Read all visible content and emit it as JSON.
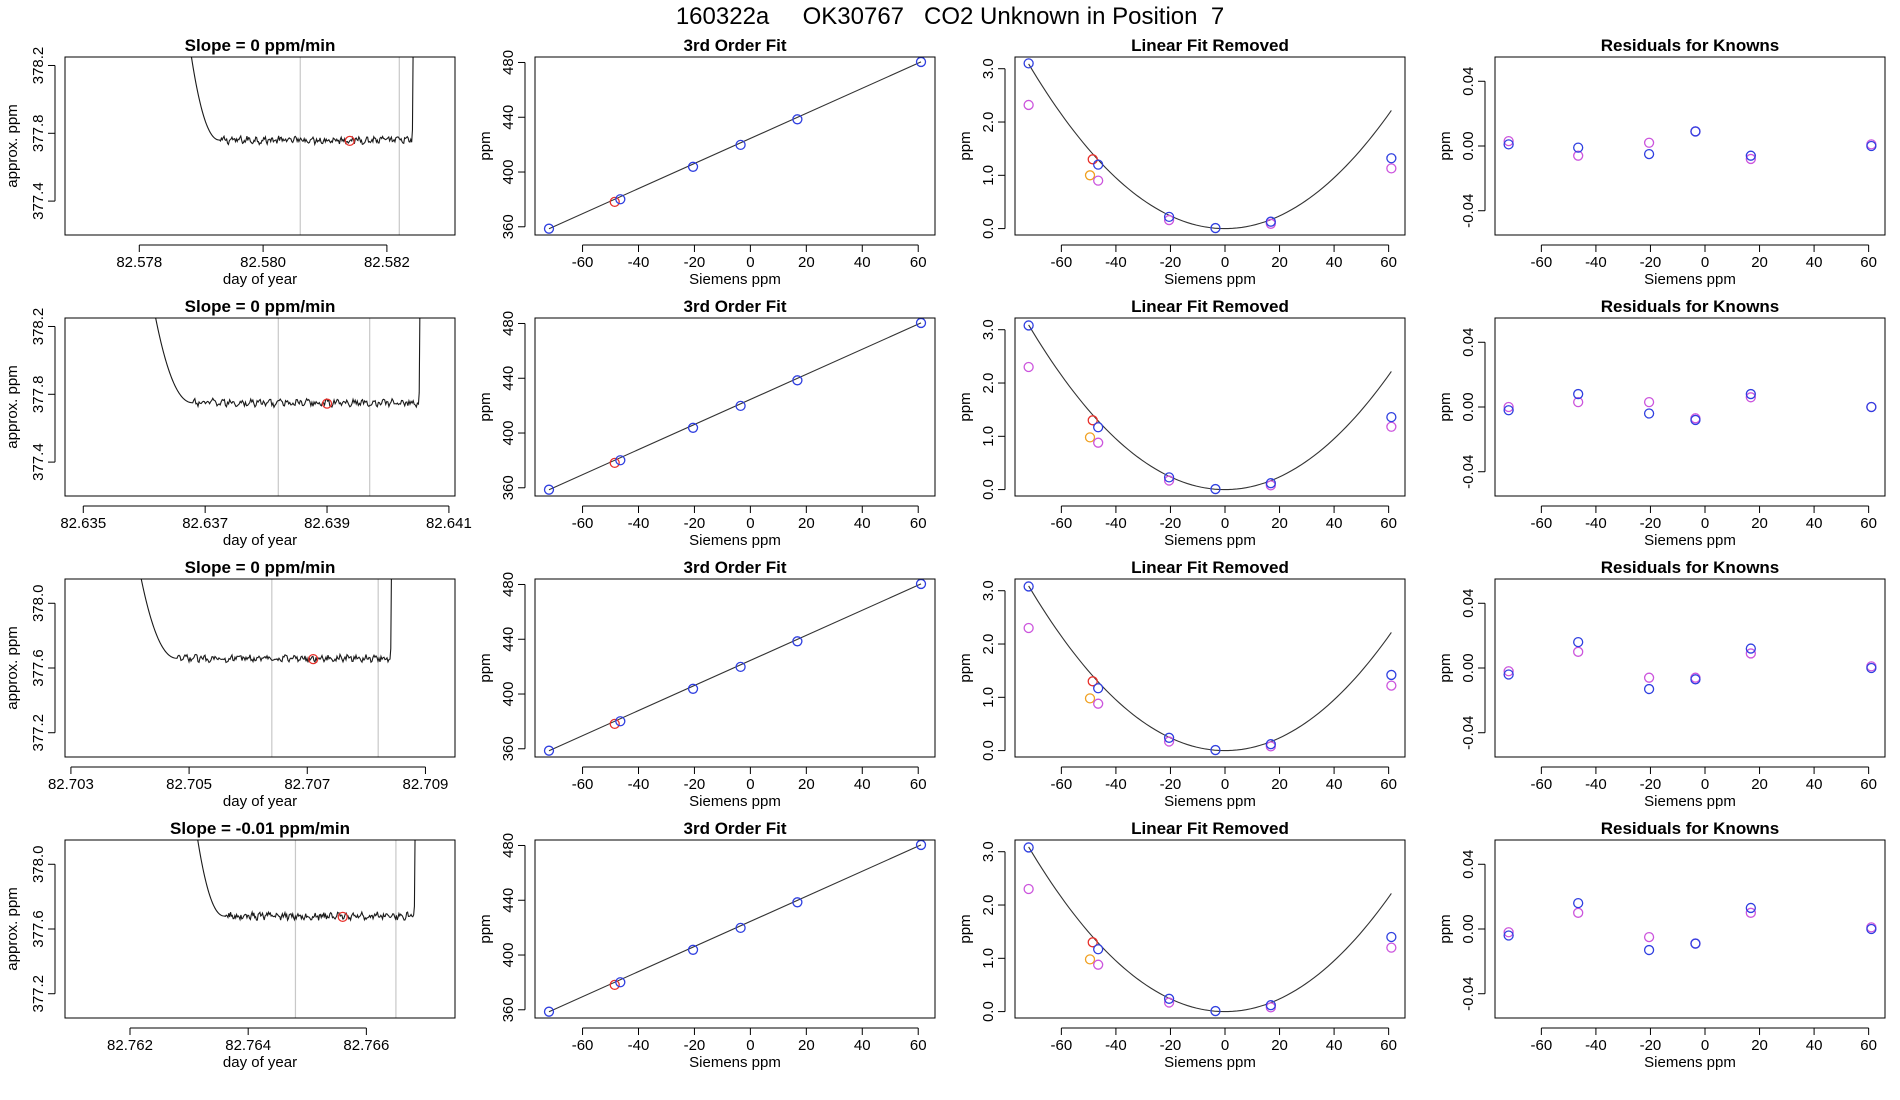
{
  "page": {
    "title": "160322a     OK30767   CO2 Unknown in Position  7"
  },
  "colors": {
    "axis": "#000000",
    "trace": "#1a1a1a",
    "fit_line": "#333333",
    "vline": "#c8c8c8",
    "red": "#e8302a",
    "blue": "#2f3fe0",
    "magenta": "#cc55dd",
    "orange": "#f0a020",
    "purple": "#7a3fe8"
  },
  "chart_data": [
    {
      "row": 1,
      "type": "line",
      "title": "Slope =  0  ppm/min",
      "xlabel": "day of year",
      "ylabel": "approx. ppm",
      "xlim": [
        82.5768,
        82.5831
      ],
      "ylim": [
        377.2,
        378.25
      ],
      "xticks": [
        82.578,
        82.58,
        82.582
      ],
      "xtick_labels": [
        "82.578",
        "82.580",
        "82.582"
      ],
      "yticks": [
        377.4,
        377.8,
        378.2
      ],
      "ytick_labels": [
        "377.4",
        "377.8",
        "378.2"
      ],
      "start": 82.5787,
      "end": 82.5824,
      "rise_end": 82.5793,
      "plateau": 377.76,
      "vlines": [
        82.5806,
        82.5822
      ],
      "marker": {
        "x": 82.5814,
        "y": 377.755
      }
    },
    {
      "row": 2,
      "type": "line",
      "title": "Slope =  0  ppm/min",
      "xlabel": "day of year",
      "ylabel": "approx. ppm",
      "xlim": [
        82.6347,
        82.6411
      ],
      "ylim": [
        377.2,
        378.25
      ],
      "xticks": [
        82.635,
        82.637,
        82.639,
        82.641
      ],
      "xtick_labels": [
        "82.635",
        "82.637",
        "82.639",
        "82.641"
      ],
      "yticks": [
        377.4,
        377.8,
        378.2
      ],
      "ytick_labels": [
        "377.4",
        "377.8",
        "378.2"
      ],
      "start": 82.636,
      "end": 82.6405,
      "rise_end": 82.6368,
      "plateau": 377.75,
      "vlines": [
        82.6382,
        82.6397
      ],
      "marker": {
        "x": 82.639,
        "y": 377.745
      }
    },
    {
      "row": 3,
      "type": "line",
      "title": "Slope =  0  ppm/min",
      "xlabel": "day of year",
      "ylabel": "approx. ppm",
      "xlim": [
        82.7029,
        82.7095
      ],
      "ylim": [
        377.05,
        378.15
      ],
      "xticks": [
        82.703,
        82.705,
        82.707,
        82.709
      ],
      "xtick_labels": [
        "82.703",
        "82.705",
        "82.707",
        "82.709"
      ],
      "yticks": [
        377.2,
        377.6,
        378.0
      ],
      "ytick_labels": [
        "377.2",
        "377.6",
        "378.0"
      ],
      "start": 82.704,
      "end": 82.7084,
      "rise_end": 82.7048,
      "plateau": 377.66,
      "vlines": [
        82.7064,
        82.7082
      ],
      "marker": {
        "x": 82.7071,
        "y": 377.655
      }
    },
    {
      "row": 4,
      "type": "line",
      "title": "Slope =  -0.01  ppm/min",
      "xlabel": "day of year",
      "ylabel": "approx. ppm",
      "xlim": [
        82.7609,
        82.7675
      ],
      "ylim": [
        377.05,
        378.15
      ],
      "xticks": [
        82.762,
        82.764,
        82.766
      ],
      "xtick_labels": [
        "82.762",
        "82.764",
        "82.766"
      ],
      "yticks": [
        377.2,
        377.6,
        378.0
      ],
      "ytick_labels": [
        "377.2",
        "377.6",
        "378.0"
      ],
      "start": 82.763,
      "end": 82.7668,
      "rise_end": 82.7636,
      "plateau": 377.68,
      "vlines": [
        82.7648,
        82.7665
      ],
      "marker": {
        "x": 82.7656,
        "y": 377.675
      }
    },
    {
      "row": 1,
      "type": "scatter",
      "title": "3rd Order Fit",
      "xlabel": "Siemens ppm",
      "ylabel": "ppm",
      "xlim": [
        -77,
        66
      ],
      "ylim": [
        354,
        484
      ],
      "xticks": [
        -60,
        -40,
        -20,
        0,
        20,
        40,
        60
      ],
      "xtick_labels": [
        "-60",
        "-40",
        "-20",
        "0",
        "20",
        "40",
        "60"
      ],
      "yticks": [
        360,
        400,
        440,
        480
      ],
      "ytick_labels": [
        "360",
        "400",
        "440",
        "480"
      ],
      "line": {
        "x": [
          -72,
          61
        ],
        "y": [
          358.6,
          480.4
        ]
      },
      "points_blue": {
        "x": [
          -72,
          -46.5,
          -20.5,
          -3.5,
          16.8,
          61
        ],
        "y": [
          358.6,
          380.1,
          403.8,
          419.8,
          438.5,
          480.4
        ]
      },
      "points_red": {
        "x": [
          -48.5
        ],
        "y": [
          378.2
        ]
      }
    },
    {
      "row": 2,
      "type": "scatter",
      "title": "3rd Order Fit",
      "xlabel": "Siemens ppm",
      "ylabel": "ppm",
      "xlim": [
        -77,
        66
      ],
      "ylim": [
        354,
        484
      ],
      "xticks": [
        -60,
        -40,
        -20,
        0,
        20,
        40,
        60
      ],
      "xtick_labels": [
        "-60",
        "-40",
        "-20",
        "0",
        "20",
        "40",
        "60"
      ],
      "yticks": [
        360,
        400,
        440,
        480
      ],
      "ytick_labels": [
        "360",
        "400",
        "440",
        "480"
      ],
      "line": {
        "x": [
          -72,
          61
        ],
        "y": [
          358.6,
          480.4
        ]
      },
      "points_blue": {
        "x": [
          -72,
          -46.5,
          -20.5,
          -3.5,
          16.8,
          61
        ],
        "y": [
          358.6,
          380.1,
          403.8,
          419.8,
          438.5,
          480.4
        ]
      },
      "points_red": {
        "x": [
          -48.5
        ],
        "y": [
          378.2
        ]
      }
    },
    {
      "row": 3,
      "type": "scatter",
      "title": "3rd Order Fit",
      "xlabel": "Siemens ppm",
      "ylabel": "ppm",
      "xlim": [
        -77,
        66
      ],
      "ylim": [
        354,
        484
      ],
      "xticks": [
        -60,
        -40,
        -20,
        0,
        20,
        40,
        60
      ],
      "xtick_labels": [
        "-60",
        "-40",
        "-20",
        "0",
        "20",
        "40",
        "60"
      ],
      "yticks": [
        360,
        400,
        440,
        480
      ],
      "ytick_labels": [
        "360",
        "400",
        "440",
        "480"
      ],
      "line": {
        "x": [
          -72,
          61
        ],
        "y": [
          358.6,
          480.4
        ]
      },
      "points_blue": {
        "x": [
          -72,
          -46.5,
          -20.5,
          -3.5,
          16.8,
          61
        ],
        "y": [
          358.6,
          380.1,
          403.8,
          419.8,
          438.5,
          480.4
        ]
      },
      "points_red": {
        "x": [
          -48.5
        ],
        "y": [
          378.2
        ]
      }
    },
    {
      "row": 4,
      "type": "scatter",
      "title": "3rd Order Fit",
      "xlabel": "Siemens ppm",
      "ylabel": "ppm",
      "xlim": [
        -77,
        66
      ],
      "ylim": [
        354,
        484
      ],
      "xticks": [
        -60,
        -40,
        -20,
        0,
        20,
        40,
        60
      ],
      "xtick_labels": [
        "-60",
        "-40",
        "-20",
        "0",
        "20",
        "40",
        "60"
      ],
      "yticks": [
        360,
        400,
        440,
        480
      ],
      "ytick_labels": [
        "360",
        "400",
        "440",
        "480"
      ],
      "line": {
        "x": [
          -72,
          61
        ],
        "y": [
          358.6,
          480.4
        ]
      },
      "points_blue": {
        "x": [
          -72,
          -46.5,
          -20.5,
          -3.5,
          16.8,
          61
        ],
        "y": [
          358.6,
          380.1,
          403.8,
          419.8,
          438.5,
          480.4
        ]
      },
      "points_red": {
        "x": [
          -48.5
        ],
        "y": [
          378.2
        ]
      }
    },
    {
      "row": 1,
      "type": "scatter",
      "title": "Linear Fit Removed",
      "xlabel": "Siemens ppm",
      "ylabel": "ppm",
      "xlim": [
        -77,
        66
      ],
      "ylim": [
        -0.12,
        3.22
      ],
      "xticks": [
        -60,
        -40,
        -20,
        0,
        20,
        40,
        60
      ],
      "xtick_labels": [
        "-60",
        "-40",
        "-20",
        "0",
        "20",
        "40",
        "60"
      ],
      "yticks": [
        0.0,
        1.0,
        2.0,
        3.0
      ],
      "ytick_labels": [
        "0.0",
        "1.0",
        "2.0",
        "3.0"
      ],
      "curve": {
        "x_from": -72,
        "x_to": 61,
        "vertex_x": 0,
        "vertex_y": 0,
        "a": 0.000596
      },
      "points_blue": {
        "x": [
          -72,
          -46.5,
          -20.5,
          -3.5,
          16.8,
          61
        ],
        "y": [
          3.1,
          1.2,
          0.22,
          0.01,
          0.13,
          1.32
        ]
      },
      "points_magenta": {
        "x": [
          -72,
          -46.5,
          -20.5,
          16.8,
          61
        ],
        "y": [
          2.32,
          0.9,
          0.16,
          0.09,
          1.13
        ]
      },
      "points_red": {
        "x": [
          -48.5
        ],
        "y": [
          1.3
        ]
      },
      "points_orange": {
        "x": [
          -49.5
        ],
        "y": [
          1.0
        ]
      }
    },
    {
      "row": 2,
      "type": "scatter",
      "title": "Linear Fit Removed",
      "xlabel": "Siemens ppm",
      "ylabel": "ppm",
      "xlim": [
        -77,
        66
      ],
      "ylim": [
        -0.12,
        3.22
      ],
      "xticks": [
        -60,
        -40,
        -20,
        0,
        20,
        40,
        60
      ],
      "xtick_labels": [
        "-60",
        "-40",
        "-20",
        "0",
        "20",
        "40",
        "60"
      ],
      "yticks": [
        0.0,
        1.0,
        2.0,
        3.0
      ],
      "ytick_labels": [
        "0.0",
        "1.0",
        "2.0",
        "3.0"
      ],
      "curve": {
        "x_from": -72,
        "x_to": 61,
        "vertex_x": 0,
        "vertex_y": 0,
        "a": 0.000596
      },
      "points_blue": {
        "x": [
          -72,
          -46.5,
          -20.5,
          -3.5,
          16.8,
          61
        ],
        "y": [
          3.08,
          1.17,
          0.23,
          0.01,
          0.12,
          1.36
        ]
      },
      "points_magenta": {
        "x": [
          -72,
          -46.5,
          -20.5,
          16.8,
          61
        ],
        "y": [
          2.3,
          0.88,
          0.17,
          0.08,
          1.18
        ]
      },
      "points_red": {
        "x": [
          -48.5
        ],
        "y": [
          1.3
        ]
      },
      "points_orange": {
        "x": [
          -49.5
        ],
        "y": [
          0.98
        ]
      }
    },
    {
      "row": 3,
      "type": "scatter",
      "title": "Linear Fit Removed",
      "xlabel": "Siemens ppm",
      "ylabel": "ppm",
      "xlim": [
        -77,
        66
      ],
      "ylim": [
        -0.12,
        3.22
      ],
      "xticks": [
        -60,
        -40,
        -20,
        0,
        20,
        40,
        60
      ],
      "xtick_labels": [
        "-60",
        "-40",
        "-20",
        "0",
        "20",
        "40",
        "60"
      ],
      "yticks": [
        0.0,
        1.0,
        2.0,
        3.0
      ],
      "ytick_labels": [
        "0.0",
        "1.0",
        "2.0",
        "3.0"
      ],
      "curve": {
        "x_from": -72,
        "x_to": 61,
        "vertex_x": 0,
        "vertex_y": 0,
        "a": 0.000596
      },
      "points_blue": {
        "x": [
          -72,
          -46.5,
          -20.5,
          -3.5,
          16.8,
          61
        ],
        "y": [
          3.08,
          1.17,
          0.24,
          0.01,
          0.12,
          1.42
        ]
      },
      "points_magenta": {
        "x": [
          -72,
          -46.5,
          -20.5,
          16.8,
          61
        ],
        "y": [
          2.3,
          0.88,
          0.17,
          0.08,
          1.22
        ]
      },
      "points_red": {
        "x": [
          -48.5
        ],
        "y": [
          1.3
        ]
      },
      "points_orange": {
        "x": [
          -49.5
        ],
        "y": [
          0.98
        ]
      }
    },
    {
      "row": 4,
      "type": "scatter",
      "title": "Linear Fit Removed",
      "xlabel": "Siemens ppm",
      "ylabel": "ppm",
      "xlim": [
        -77,
        66
      ],
      "ylim": [
        -0.12,
        3.22
      ],
      "xticks": [
        -60,
        -40,
        -20,
        0,
        20,
        40,
        60
      ],
      "xtick_labels": [
        "-60",
        "-40",
        "-20",
        "0",
        "20",
        "40",
        "60"
      ],
      "yticks": [
        0.0,
        1.0,
        2.0,
        3.0
      ],
      "ytick_labels": [
        "0.0",
        "1.0",
        "2.0",
        "3.0"
      ],
      "curve": {
        "x_from": -72,
        "x_to": 61,
        "vertex_x": 0,
        "vertex_y": 0,
        "a": 0.000596
      },
      "points_blue": {
        "x": [
          -72,
          -46.5,
          -20.5,
          -3.5,
          16.8,
          61
        ],
        "y": [
          3.08,
          1.17,
          0.24,
          0.01,
          0.12,
          1.4
        ]
      },
      "points_magenta": {
        "x": [
          -72,
          -46.5,
          -20.5,
          16.8,
          61
        ],
        "y": [
          2.3,
          0.88,
          0.17,
          0.08,
          1.2
        ]
      },
      "points_red": {
        "x": [
          -48.5
        ],
        "y": [
          1.3
        ]
      },
      "points_orange": {
        "x": [
          -49.5
        ],
        "y": [
          0.98
        ]
      }
    },
    {
      "row": 1,
      "type": "scatter",
      "title": "Residuals for Knowns",
      "xlabel": "Siemens ppm",
      "ylabel": "ppm",
      "xlim": [
        -77,
        66
      ],
      "ylim": [
        -0.055,
        0.055
      ],
      "xticks": [
        -60,
        -40,
        -20,
        0,
        20,
        40,
        60
      ],
      "xtick_labels": [
        "-60",
        "-40",
        "-20",
        "0",
        "20",
        "40",
        "60"
      ],
      "yticks": [
        -0.04,
        0.0,
        0.04
      ],
      "ytick_labels": [
        "-0.04",
        "0.00",
        "0.04"
      ],
      "points_blue": {
        "x": [
          -72,
          -46.5,
          -20.5,
          -3.5,
          16.8,
          61
        ],
        "y": [
          0.001,
          -0.001,
          -0.005,
          0.009,
          -0.006,
          0.0
        ]
      },
      "points_magenta": {
        "x": [
          -72,
          -46.5,
          -20.5,
          -3.5,
          16.8,
          61
        ],
        "y": [
          0.003,
          -0.006,
          0.002,
          0.009,
          -0.008,
          0.001
        ]
      }
    },
    {
      "row": 2,
      "type": "scatter",
      "title": "Residuals for Knowns",
      "xlabel": "Siemens ppm",
      "ylabel": "ppm",
      "xlim": [
        -77,
        66
      ],
      "ylim": [
        -0.055,
        0.055
      ],
      "xticks": [
        -60,
        -40,
        -20,
        0,
        20,
        40,
        60
      ],
      "xtick_labels": [
        "-60",
        "-40",
        "-20",
        "0",
        "20",
        "40",
        "60"
      ],
      "yticks": [
        -0.04,
        0.0,
        0.04
      ],
      "ytick_labels": [
        "-0.04",
        "0.00",
        "0.04"
      ],
      "points_blue": {
        "x": [
          -72,
          -46.5,
          -20.5,
          -3.5,
          16.8,
          61
        ],
        "y": [
          -0.002,
          0.008,
          -0.004,
          -0.008,
          0.008,
          0.0
        ]
      },
      "points_magenta": {
        "x": [
          -72,
          -46.5,
          -20.5,
          -3.5,
          16.8,
          61
        ],
        "y": [
          0.0,
          0.003,
          0.003,
          -0.007,
          0.006,
          0.0
        ]
      }
    },
    {
      "row": 3,
      "type": "scatter",
      "title": "Residuals for Knowns",
      "xlabel": "Siemens ppm",
      "ylabel": "ppm",
      "xlim": [
        -77,
        66
      ],
      "ylim": [
        -0.055,
        0.055
      ],
      "xticks": [
        -60,
        -40,
        -20,
        0,
        20,
        40,
        60
      ],
      "xtick_labels": [
        "-60",
        "-40",
        "-20",
        "0",
        "20",
        "40",
        "60"
      ],
      "yticks": [
        -0.04,
        0.0,
        0.04
      ],
      "ytick_labels": [
        "-0.04",
        "0.00",
        "0.04"
      ],
      "points_blue": {
        "x": [
          -72,
          -46.5,
          -20.5,
          -3.5,
          16.8,
          61
        ],
        "y": [
          -0.004,
          0.016,
          -0.013,
          -0.007,
          0.012,
          0.0
        ]
      },
      "points_magenta": {
        "x": [
          -72,
          -46.5,
          -20.5,
          -3.5,
          16.8,
          61
        ],
        "y": [
          -0.002,
          0.01,
          -0.006,
          -0.006,
          0.009,
          0.001
        ]
      }
    },
    {
      "row": 4,
      "type": "scatter",
      "title": "Residuals for Knowns",
      "xlabel": "Siemens ppm",
      "ylabel": "ppm",
      "xlim": [
        -77,
        66
      ],
      "ylim": [
        -0.055,
        0.055
      ],
      "xticks": [
        -60,
        -40,
        -20,
        0,
        20,
        40,
        60
      ],
      "xtick_labels": [
        "-60",
        "-40",
        "-20",
        "0",
        "20",
        "40",
        "60"
      ],
      "yticks": [
        -0.04,
        0.0,
        0.04
      ],
      "ytick_labels": [
        "-0.04",
        "0.00",
        "0.04"
      ],
      "points_blue": {
        "x": [
          -72,
          -46.5,
          -20.5,
          -3.5,
          16.8,
          61
        ],
        "y": [
          -0.004,
          0.016,
          -0.013,
          -0.009,
          0.013,
          0.0
        ]
      },
      "points_magenta": {
        "x": [
          -72,
          -46.5,
          -20.5,
          -3.5,
          16.8,
          61
        ],
        "y": [
          -0.002,
          0.01,
          -0.005,
          -0.009,
          0.01,
          0.001
        ]
      }
    }
  ]
}
